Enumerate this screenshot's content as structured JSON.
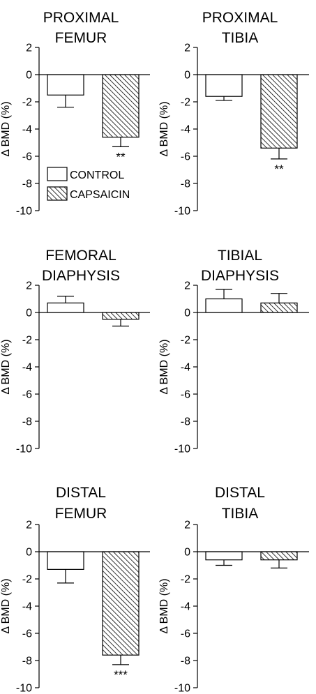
{
  "chart_data": [
    {
      "type": "bar",
      "title": [
        "PROXIMAL",
        "FEMUR"
      ],
      "ylabel": "Δ BMD (%)",
      "ylim": [
        -10,
        2
      ],
      "yticks": [
        "2",
        "0",
        "-2",
        "-4",
        "-6",
        "-8",
        "-10"
      ],
      "categories": [
        "CONTROL",
        "CAPSAICIN"
      ],
      "values": [
        -1.5,
        -4.6
      ],
      "errors": [
        0.9,
        0.7
      ],
      "significance": [
        "",
        "**"
      ],
      "legend": [
        "CONTROL",
        "CAPSAICIN"
      ]
    },
    {
      "type": "bar",
      "title": [
        "PROXIMAL",
        "TIBIA"
      ],
      "ylabel": "Δ BMD (%)",
      "ylim": [
        -10,
        2
      ],
      "yticks": [
        "2",
        "0",
        "-2",
        "-4",
        "-6",
        "-8",
        "-10"
      ],
      "categories": [
        "CONTROL",
        "CAPSAICIN"
      ],
      "values": [
        -1.6,
        -5.4
      ],
      "errors": [
        0.3,
        0.8
      ],
      "significance": [
        "",
        "**"
      ]
    },
    {
      "type": "bar",
      "title": [
        "FEMORAL",
        "DIAPHYSIS"
      ],
      "ylabel": "Δ BMD (%)",
      "ylim": [
        -10,
        2
      ],
      "yticks": [
        "2",
        "0",
        "-2",
        "-4",
        "-6",
        "-8",
        "-10"
      ],
      "categories": [
        "CONTROL",
        "CAPSAICIN"
      ],
      "values": [
        0.7,
        -0.5
      ],
      "errors": [
        0.5,
        0.5
      ],
      "significance": [
        "",
        ""
      ]
    },
    {
      "type": "bar",
      "title": [
        "TIBIAL",
        "DIAPHYSIS"
      ],
      "ylabel": "Δ BMD (%)",
      "ylim": [
        -10,
        2
      ],
      "yticks": [
        "2",
        "0",
        "-2",
        "-4",
        "-6",
        "-8",
        "-10"
      ],
      "categories": [
        "CONTROL",
        "CAPSAICIN"
      ],
      "values": [
        1.0,
        0.7
      ],
      "errors": [
        0.7,
        0.7
      ],
      "significance": [
        "",
        ""
      ]
    },
    {
      "type": "bar",
      "title": [
        "DISTAL",
        "FEMUR"
      ],
      "ylabel": "Δ BMD (%)",
      "ylim": [
        -10,
        2
      ],
      "yticks": [
        "2",
        "0",
        "-2",
        "-4",
        "-6",
        "-8",
        "-10"
      ],
      "categories": [
        "CONTROL",
        "CAPSAICIN"
      ],
      "values": [
        -1.3,
        -7.6
      ],
      "errors": [
        1.0,
        0.7
      ],
      "significance": [
        "",
        "***"
      ]
    },
    {
      "type": "bar",
      "title": [
        "DISTAL",
        "TIBIA"
      ],
      "ylabel": "Δ BMD (%)",
      "ylim": [
        -10,
        2
      ],
      "yticks": [
        "2",
        "0",
        "-2",
        "-4",
        "-6",
        "-8",
        "-10"
      ],
      "categories": [
        "CONTROL",
        "CAPSAICIN"
      ],
      "values": [
        -0.6,
        -0.6
      ],
      "errors": [
        0.4,
        0.6
      ],
      "significance": [
        "",
        ""
      ]
    }
  ],
  "colors": {
    "control_fill": "#ffffff",
    "capsaicin_hatch": "#000000",
    "axis": "#000000"
  }
}
